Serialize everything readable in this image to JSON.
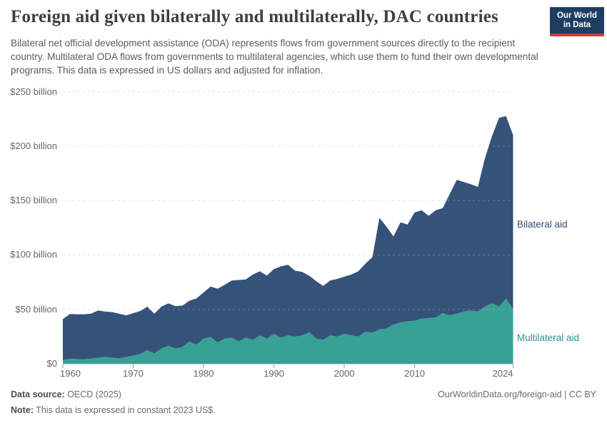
{
  "header": {
    "title": "Foreign aid given bilaterally and multilaterally, DAC countries",
    "subtitle": "Bilateral net official development assistance (ODA) represents flows from government sources directly to the recipient country. Multilateral ODA flows from governments to multilateral agencies, which use them to fund their own developmental programs. This data is expressed in US dollars and adjusted for inflation.",
    "logo": {
      "line1": "Our World",
      "line2": "in Data",
      "bg_color": "#1d3d63",
      "accent_color": "#d23b33"
    }
  },
  "chart_data": {
    "type": "area",
    "stacked": true,
    "title": "Foreign aid given bilaterally and multilaterally, DAC countries",
    "unit": "US$ billion (constant 2023 US$)",
    "grid": "dashed",
    "ylim": [
      0,
      250
    ],
    "x": [
      1960,
      1961,
      1962,
      1963,
      1964,
      1965,
      1966,
      1967,
      1968,
      1969,
      1970,
      1971,
      1972,
      1973,
      1974,
      1975,
      1976,
      1977,
      1978,
      1979,
      1980,
      1981,
      1982,
      1983,
      1984,
      1985,
      1986,
      1987,
      1988,
      1989,
      1990,
      1991,
      1992,
      1993,
      1994,
      1995,
      1996,
      1997,
      1998,
      1999,
      2000,
      2001,
      2002,
      2003,
      2004,
      2005,
      2006,
      2007,
      2008,
      2009,
      2010,
      2011,
      2012,
      2013,
      2014,
      2015,
      2016,
      2017,
      2018,
      2019,
      2020,
      2021,
      2022,
      2023,
      2024
    ],
    "series": [
      {
        "name": "Multilateral aid",
        "color": "#38a196",
        "label_color": "#2a9488",
        "values": [
          3.5,
          4.5,
          4.3,
          4.1,
          4.8,
          5.6,
          6.2,
          5.6,
          5.0,
          6.3,
          7.5,
          9.0,
          12.5,
          9.5,
          14.0,
          16.5,
          14.0,
          15.5,
          20.5,
          17.5,
          23.0,
          24.5,
          19.5,
          23.0,
          24.0,
          20.5,
          24.0,
          22.0,
          26.0,
          23.0,
          27.5,
          24.0,
          26.0,
          25.0,
          26.0,
          29.0,
          23.0,
          22.0,
          26.0,
          25.0,
          27.5,
          26.0,
          25.0,
          29.5,
          28.5,
          31.5,
          32.5,
          36.0,
          38.0,
          39.0,
          39.5,
          41.5,
          42.0,
          42.5,
          46.5,
          44.5,
          46.0,
          48.0,
          49.0,
          48.0,
          52.5,
          55.5,
          52.5,
          60.0,
          50.0
        ]
      },
      {
        "name": "Bilateral aid",
        "color": "#355379",
        "label_color": "#2d4e77",
        "values": [
          37.5,
          41.3,
          41.2,
          41.4,
          41.2,
          43.4,
          41.8,
          41.9,
          41.0,
          38.2,
          39.0,
          39.5,
          40.0,
          36.5,
          38.5,
          39.0,
          39.0,
          38.0,
          37.5,
          42.5,
          42.5,
          46.5,
          49.5,
          49.5,
          52.5,
          56.5,
          53.5,
          60.0,
          59.0,
          58.0,
          59.5,
          65.5,
          65.0,
          60.5,
          58.5,
          52.0,
          53.0,
          49.5,
          50.5,
          53.0,
          52.5,
          56.0,
          60.0,
          62.5,
          69.5,
          102.5,
          93.5,
          81.0,
          92.0,
          89.0,
          99.5,
          99.5,
          94.0,
          98.5,
          96.5,
          111.5,
          123.0,
          119.0,
          116.0,
          114.5,
          136.5,
          153.5,
          173.5,
          167.5,
          160.0
        ]
      }
    ],
    "y_ticks": [
      {
        "value": 0,
        "label": "$0"
      },
      {
        "value": 50,
        "label": "$50 billion"
      },
      {
        "value": 100,
        "label": "$100 billion"
      },
      {
        "value": 150,
        "label": "$150 billion"
      },
      {
        "value": 200,
        "label": "$200 billion"
      },
      {
        "value": 250,
        "label": "$250 billion"
      }
    ],
    "x_ticks": [
      1960,
      1970,
      1980,
      1990,
      2000,
      2010,
      2024
    ]
  },
  "footer": {
    "source_label": "Data source:",
    "source_value": " OECD (2025)",
    "note_label": "Note:",
    "note_value": " This data is expressed in constant 2023 US$.",
    "link": "OurWorldinData.org/foreign-aid | CC BY"
  }
}
